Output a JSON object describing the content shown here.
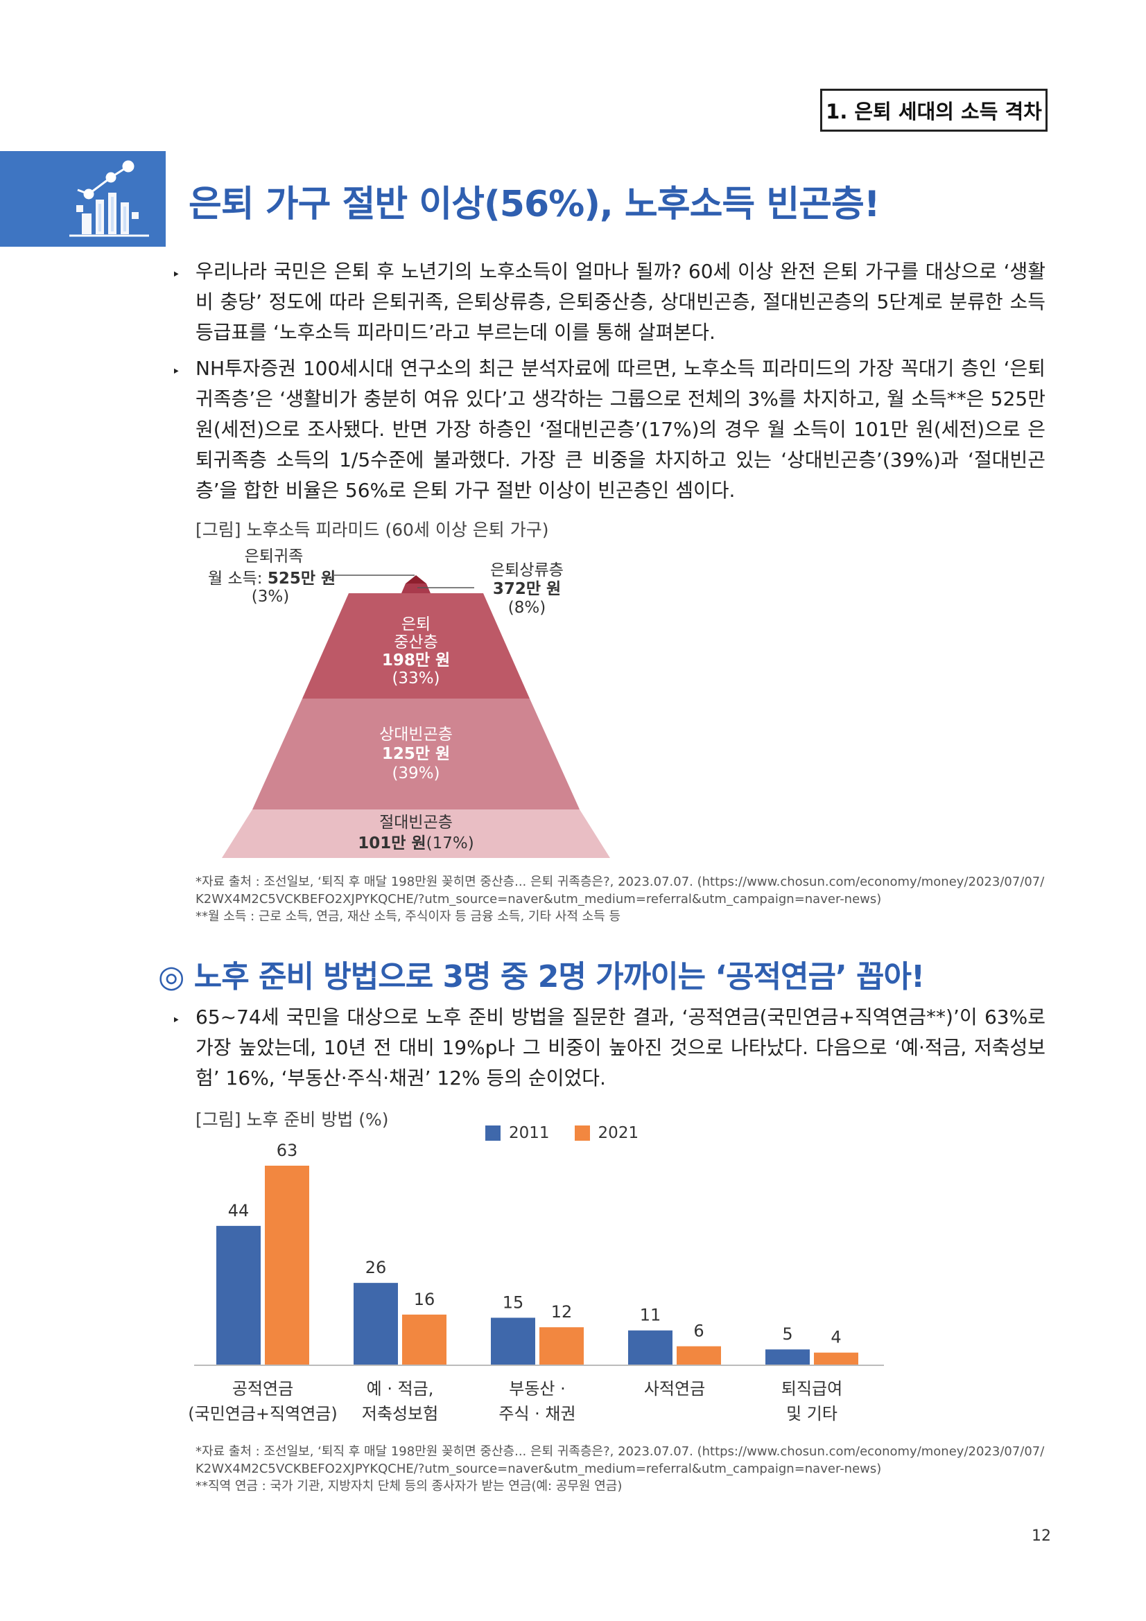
{
  "header": {
    "section": "1. 은퇴 세대의 소득 격차"
  },
  "title": "은퇴 가구 절반 이상(56%), 노후소득 빈곤층!",
  "intro_paragraphs": [
    "우리나라 국민은 은퇴 후 노년기의 노후소득이 얼마나 될까? 60세 이상 완전 은퇴 가구를 대상으로 ‘생활비 충당’ 정도에 따라 은퇴귀족, 은퇴상류층, 은퇴중산층, 상대빈곤층, 절대빈곤층의 5단계로 분류한 소득 등급표를 ‘노후소득 피라미드’라고 부르는데 이를 통해 살펴본다.",
    "NH투자증권 100세시대 연구소의 최근 분석자료에 따르면, 노후소득 피라미드의 가장 꼭대기 층인 ‘은퇴귀족층’은 ‘생활비가 충분히 여유 있다’고 생각하는 그룹으로 전체의 3%를 차지하고, 월 소득**은 525만 원(세전)으로 조사됐다. 반면 가장 하층인 ‘절대빈곤층’(17%)의 경우 월 소득이 101만 원(세전)으로 은퇴귀족층 소득의 1/5수준에 불과했다. 가장 큰 비중을 차지하고 있는 ‘상대빈곤층’(39%)과 ‘절대빈곤층’을 합한 비율은 56%로 은퇴 가구 절반 이상이 빈곤층인 셈이다."
  ],
  "pyramid": {
    "caption": "[그림] 노후소득 피라미드 (60세 이상 은퇴 가구)",
    "top_left": {
      "name": "은퇴귀족",
      "income_prefix": "월 소득: ",
      "income": "525만 원",
      "share": "(3%)"
    },
    "top_right": {
      "name": "은퇴상류층",
      "income": "372만 원",
      "share": "(8%)"
    },
    "middle": {
      "name1": "은퇴",
      "name2": "중산층",
      "income": "198만 원",
      "share": "(33%)"
    },
    "relative": {
      "name": "상대빈곤층",
      "income": "125만 원",
      "share": "(39%)"
    },
    "absolute": {
      "name": "절대빈곤층",
      "income": "101만 원",
      "share": "(17%)"
    },
    "colors": {
      "top": "#8e1f2e",
      "upper": "#a93a4c",
      "middle": "#bd5967",
      "relative": "#cf8591",
      "absolute": "#e9bec4"
    },
    "notes": [
      "*자료 출처 : 조선일보, ‘퇴직 후 매달 198만원 꽂히면 중산층... 은퇴 귀족층은?, 2023.07.07. (https://www.chosun.com/economy/money/2023/07/07/",
      "K2WX4M2C5VCKBEFO2XJPYKQCHE/?utm_source=naver&utm_medium=referral&utm_campaign=naver-news)",
      "**월 소득 : 근로 소득, 연금, 재산 소득, 주식이자 등 금융 소득, 기타 사적 소득 등"
    ]
  },
  "section2": {
    "title": "◎ 노후 준비 방법으로 3명 중 2명 가까이는 ‘공적연금’ 꼽아!",
    "paragraph": "65~74세 국민을 대상으로 노후 준비 방법을 질문한 결과, ‘공적연금(국민연금+직역연금**)’이 63%로 가장 높았는데, 10년 전 대비 19%p나 그 비중이 높아진 것으로 나타났다. 다음으로 ‘예·적금, 저축성보험’ 16%, ‘부동산·주식·채권’ 12% 등의 순이었다."
  },
  "chart_data": {
    "type": "bar",
    "caption": "[그림] 노후 준비 방법 (%)",
    "categories": [
      [
        "공적연금",
        "(국민연금+직역연금)"
      ],
      [
        "예 · 적금,",
        "저축성보험"
      ],
      [
        "부동산 ·",
        "주식 · 채권"
      ],
      [
        "사적연금"
      ],
      [
        "퇴직급여",
        "및 기타"
      ]
    ],
    "series": [
      {
        "name": "2011",
        "values": [
          44,
          26,
          15,
          11,
          5
        ],
        "color": "#3f68ab"
      },
      {
        "name": "2021",
        "values": [
          63,
          16,
          12,
          6,
          4
        ],
        "color": "#f28740"
      }
    ],
    "ylim": [
      0,
      70
    ],
    "legend": "top-center",
    "grid": false,
    "notes": [
      "*자료 출처 : 조선일보, ‘퇴직 후 매달 198만원 꽂히면 중산층... 은퇴 귀족층은?, 2023.07.07. (https://www.chosun.com/economy/money/2023/07/07/",
      "K2WX4M2C5VCKBEFO2XJPYKQCHE/?utm_source=naver&utm_medium=referral&utm_campaign=naver-news)",
      "**직역 연금 : 국가 기관, 지방자치 단체 등의 종사자가 받는 연금(예: 공무원 연금)"
    ]
  },
  "page_number": "12",
  "icons": {
    "title_icon": "growth-chart-icon"
  }
}
